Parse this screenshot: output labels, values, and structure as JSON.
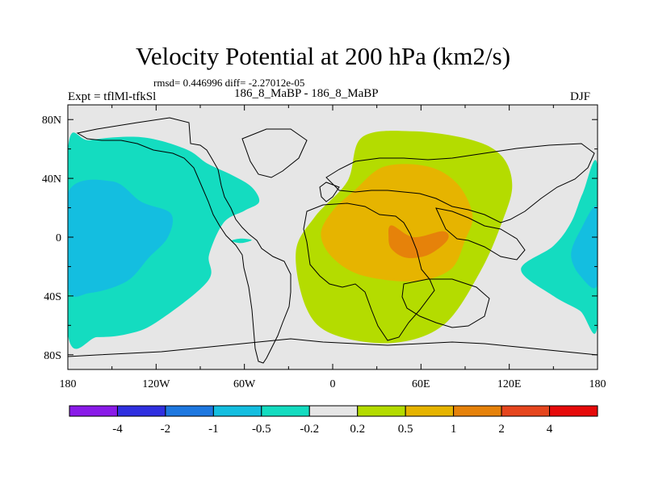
{
  "chart_data": {
    "type": "map-contour",
    "title": "Velocity Potential at 200 hPa (km2/s)",
    "stats": "rmsd= 0.446996 diff= -2.27012e-05",
    "experiment": "Expt = tflMl-tfkSl",
    "cases": "186_8_MaBP - 186_8_MaBP",
    "season": "DJF",
    "x_ticks": [
      {
        "value": -180,
        "label": "180"
      },
      {
        "value": -120,
        "label": "120W"
      },
      {
        "value": -60,
        "label": "60W"
      },
      {
        "value": 0,
        "label": "0"
      },
      {
        "value": 60,
        "label": "60E"
      },
      {
        "value": 120,
        "label": "120E"
      },
      {
        "value": 180,
        "label": "180"
      }
    ],
    "y_ticks": [
      {
        "value": 80,
        "label": "80N"
      },
      {
        "value": 40,
        "label": "40N"
      },
      {
        "value": 0,
        "label": "0"
      },
      {
        "value": -40,
        "label": "40S"
      },
      {
        "value": -80,
        "label": "80S"
      }
    ],
    "xlim": [
      -180,
      180
    ],
    "ylim": [
      -90,
      90
    ],
    "levels": [
      "-4",
      "-2",
      "-1",
      "-0.5",
      "-0.2",
      "0.2",
      "0.5",
      "1",
      "2",
      "4"
    ],
    "colorbar_colors": [
      "#8a1be8",
      "#3030e0",
      "#1e78e0",
      "#14bee0",
      "#14dcc0",
      "#e6e6e6",
      "#b4dc00",
      "#e6b400",
      "#e6820a",
      "#e6461e",
      "#e60a0a"
    ],
    "regions": [
      {
        "name": "west-pacific-negative-outer",
        "level_range": "-0.5 to -0.2",
        "color": "#14dcc0",
        "points": [
          [
            -180,
            60
          ],
          [
            -165,
            66
          ],
          [
            -130,
            68
          ],
          [
            -100,
            60
          ],
          [
            -85,
            50
          ],
          [
            -68,
            42
          ],
          [
            -55,
            34
          ],
          [
            -50,
            24
          ],
          [
            -60,
            18
          ],
          [
            -74,
            10
          ],
          [
            -84,
            -12
          ],
          [
            -85,
            -30
          ],
          [
            -120,
            -58
          ],
          [
            -140,
            -66
          ],
          [
            -160,
            -68
          ],
          [
            -180,
            -66
          ]
        ]
      },
      {
        "name": "west-pacific-negative-core",
        "level_range": "-1 to -0.5",
        "color": "#14bee0",
        "points": [
          [
            -180,
            30
          ],
          [
            -150,
            38
          ],
          [
            -130,
            24
          ],
          [
            -110,
            16
          ],
          [
            -112,
            0
          ],
          [
            -125,
            -14
          ],
          [
            -140,
            -30
          ],
          [
            -165,
            -38
          ],
          [
            -180,
            -34
          ]
        ]
      },
      {
        "name": "east-pacific-negative-outer",
        "level_range": "-0.5 to -0.2",
        "color": "#14dcc0",
        "points": [
          [
            180,
            48
          ],
          [
            170,
            30
          ],
          [
            162,
            10
          ],
          [
            150,
            -6
          ],
          [
            128,
            -22
          ],
          [
            150,
            -40
          ],
          [
            168,
            -50
          ],
          [
            180,
            -60
          ]
        ]
      },
      {
        "name": "east-pacific-negative-core",
        "level_range": "-1 to -0.5",
        "color": "#14bee0",
        "points": [
          [
            180,
            20
          ],
          [
            168,
            4
          ],
          [
            162,
            -12
          ],
          [
            168,
            -26
          ],
          [
            180,
            -32
          ]
        ]
      },
      {
        "name": "small-negative-patch",
        "level_range": "-0.5 to -0.2",
        "color": "#14dcc0",
        "points": [
          [
            -68,
            -2
          ],
          [
            -62,
            -1
          ],
          [
            -55,
            -2
          ],
          [
            -62,
            -4
          ],
          [
            -68,
            -3
          ]
        ]
      },
      {
        "name": "africa-positive-outer",
        "level_range": "0.2 to 0.5",
        "color": "#b4dc00",
        "points": [
          [
            20,
            68
          ],
          [
            55,
            72
          ],
          [
            95,
            66
          ],
          [
            115,
            55
          ],
          [
            122,
            35
          ],
          [
            115,
            10
          ],
          [
            100,
            -24
          ],
          [
            75,
            -60
          ],
          [
            40,
            -72
          ],
          [
            0,
            -66
          ],
          [
            -18,
            -48
          ],
          [
            -25,
            -10
          ],
          [
            -12,
            14
          ],
          [
            10,
            38
          ]
        ]
      },
      {
        "name": "africa-positive-mid",
        "level_range": "0.5 to 1",
        "color": "#e6b400",
        "points": [
          [
            35,
            48
          ],
          [
            65,
            48
          ],
          [
            85,
            36
          ],
          [
            95,
            15
          ],
          [
            90,
            -2
          ],
          [
            80,
            -22
          ],
          [
            55,
            -30
          ],
          [
            20,
            -26
          ],
          [
            0,
            -14
          ],
          [
            -8,
            2
          ],
          [
            0,
            18
          ],
          [
            15,
            32
          ]
        ]
      },
      {
        "name": "africa-positive-core",
        "level_range": "1 to 2",
        "color": "#e6820a",
        "points": [
          [
            40,
            8
          ],
          [
            55,
            0
          ],
          [
            75,
            4
          ],
          [
            78,
            -2
          ],
          [
            65,
            -12
          ],
          [
            50,
            -14
          ],
          [
            40,
            -8
          ],
          [
            38,
            0
          ]
        ]
      }
    ]
  }
}
